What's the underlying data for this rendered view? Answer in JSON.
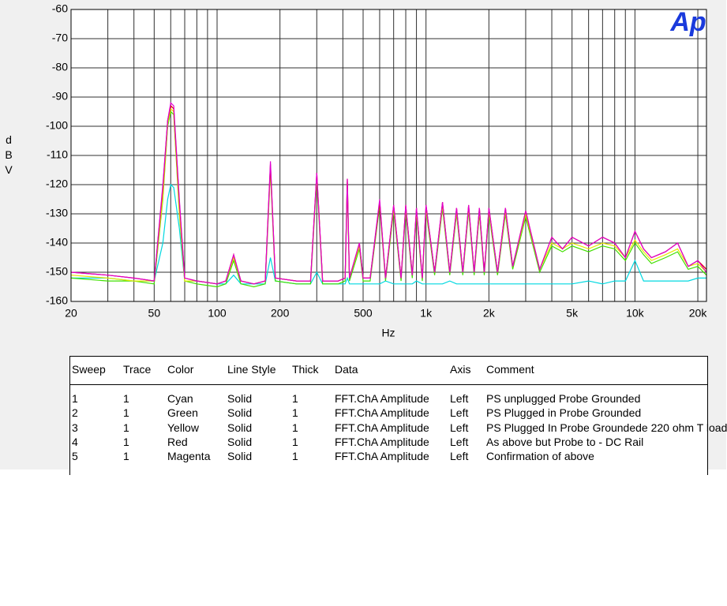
{
  "chart_data": {
    "type": "line",
    "logo": "Ap",
    "ylabel": "dBV",
    "xlabel": "Hz",
    "xlog": true,
    "grid": true,
    "xlim": [
      20,
      22000
    ],
    "ylim": [
      -160,
      -60
    ],
    "xticks": [
      20,
      50,
      100,
      200,
      500,
      {
        "value": 1000,
        "label": "1k"
      },
      {
        "value": 2000,
        "label": "2k"
      },
      {
        "value": 5000,
        "label": "5k"
      },
      {
        "value": 10000,
        "label": "10k"
      },
      {
        "value": 20000,
        "label": "20k"
      }
    ],
    "xminorticks": [
      30,
      40,
      60,
      70,
      80,
      90,
      300,
      400,
      600,
      700,
      800,
      900,
      3000,
      4000,
      6000,
      7000,
      8000,
      9000
    ],
    "yticks": [
      -60,
      -70,
      -80,
      -90,
      -100,
      -110,
      -120,
      -130,
      -140,
      -150,
      -160
    ],
    "x": [
      20,
      30,
      40,
      50,
      55,
      58,
      60,
      62,
      66,
      70,
      80,
      100,
      110,
      120,
      130,
      150,
      170,
      180,
      190,
      240,
      280,
      300,
      320,
      380,
      410,
      420,
      430,
      480,
      500,
      540,
      600,
      640,
      700,
      760,
      800,
      860,
      900,
      960,
      1000,
      1100,
      1200,
      1300,
      1400,
      1500,
      1600,
      1700,
      1800,
      1900,
      2000,
      2200,
      2400,
      2600,
      3000,
      3500,
      4000,
      4500,
      5000,
      6000,
      7000,
      8000,
      9000,
      10000,
      11000,
      12000,
      14000,
      16000,
      18000,
      20000,
      22000
    ],
    "series": [
      {
        "name": "Cyan",
        "color": "#00d8e0",
        "values": [
          -152,
          -152,
          -153,
          -153,
          -140,
          -125,
          -120,
          -121,
          -135,
          -153,
          -153,
          -154,
          -154,
          -151,
          -154,
          -154,
          -154,
          -145,
          -153,
          -154,
          -154,
          -150,
          -154,
          -154,
          -154,
          -152,
          -154,
          -154,
          -154,
          -154,
          -154,
          -153,
          -154,
          -154,
          -154,
          -154,
          -153,
          -154,
          -154,
          -154,
          -154,
          -153,
          -154,
          -154,
          -154,
          -154,
          -154,
          -154,
          -154,
          -154,
          -154,
          -154,
          -154,
          -154,
          -154,
          -154,
          -154,
          -153,
          -154,
          -153,
          -153,
          -146,
          -153,
          -153,
          -153,
          -153,
          -153,
          -152,
          -152
        ]
      },
      {
        "name": "Green",
        "color": "#40e000",
        "values": [
          -152,
          -153,
          -153,
          -154,
          -125,
          -100,
          -95,
          -96,
          -130,
          -153,
          -154,
          -155,
          -154,
          -146,
          -154,
          -155,
          -154,
          -115,
          -153,
          -154,
          -154,
          -118,
          -154,
          -154,
          -153,
          -120,
          -153,
          -142,
          -153,
          -153,
          -127,
          -153,
          -129,
          -153,
          -129,
          -152,
          -130,
          -153,
          -129,
          -151,
          -128,
          -151,
          -130,
          -151,
          -129,
          -151,
          -130,
          -151,
          -130,
          -151,
          -130,
          -149,
          -131,
          -150,
          -141,
          -143,
          -141,
          -143,
          -141,
          -142,
          -146,
          -140,
          -144,
          -147,
          -145,
          -143,
          -149,
          -148,
          -151
        ]
      },
      {
        "name": "Yellow",
        "color": "#e8e800",
        "values": [
          -151,
          -152,
          -153,
          -153,
          -124,
          -99,
          -94,
          -95,
          -129,
          -153,
          -153,
          -154,
          -153,
          -145,
          -153,
          -154,
          -153,
          -114,
          -152,
          -153,
          -153,
          -117,
          -153,
          -153,
          -152,
          -119,
          -152,
          -141,
          -152,
          -152,
          -126,
          -152,
          -128,
          -152,
          -128,
          -151,
          -129,
          -152,
          -128,
          -150,
          -127,
          -150,
          -129,
          -150,
          -128,
          -150,
          -129,
          -150,
          -129,
          -150,
          -129,
          -148,
          -130,
          -149,
          -140,
          -142,
          -140,
          -142,
          -140,
          -141,
          -145,
          -139,
          -143,
          -146,
          -144,
          -142,
          -148,
          -147,
          -150
        ]
      },
      {
        "name": "Red",
        "color": "#e00000",
        "values": [
          -150,
          -151,
          -152,
          -153,
          -121,
          -98,
          -93,
          -94,
          -126,
          -152,
          -153,
          -154,
          -153,
          -144,
          -153,
          -154,
          -153,
          -113,
          -152,
          -153,
          -153,
          -116,
          -153,
          -153,
          -152,
          -118,
          -152,
          -140,
          -152,
          -152,
          -126,
          -152,
          -127,
          -152,
          -127,
          -151,
          -128,
          -152,
          -127,
          -150,
          -126,
          -150,
          -128,
          -150,
          -127,
          -150,
          -128,
          -150,
          -128,
          -150,
          -128,
          -148,
          -129,
          -149,
          -138,
          -142,
          -138,
          -141,
          -138,
          -140,
          -145,
          -136,
          -142,
          -145,
          -143,
          -140,
          -148,
          -146,
          -149
        ]
      },
      {
        "name": "Magenta",
        "color": "#e000d0",
        "values": [
          -150,
          -151,
          -152,
          -153,
          -120,
          -98,
          -92,
          -93,
          -125,
          -152,
          -153,
          -154,
          -153,
          -144,
          -153,
          -154,
          -153,
          -112,
          -152,
          -153,
          -153,
          -116,
          -153,
          -153,
          -152,
          -118,
          -152,
          -140,
          -152,
          -152,
          -125,
          -152,
          -127,
          -152,
          -127,
          -151,
          -128,
          -152,
          -127,
          -150,
          -126,
          -150,
          -128,
          -150,
          -127,
          -150,
          -128,
          -150,
          -128,
          -150,
          -128,
          -148,
          -129,
          -149,
          -138,
          -142,
          -138,
          -141,
          -138,
          -140,
          -145,
          -136,
          -142,
          -145,
          -143,
          -140,
          -148,
          -146,
          -150
        ]
      }
    ]
  },
  "table": {
    "columns": [
      "Sweep",
      "Trace",
      "Color",
      "Line Style",
      "Thick",
      "Data",
      "Axis",
      "Comment"
    ],
    "rows": [
      [
        "1",
        "1",
        "Cyan",
        "Solid",
        "1",
        "FFT.ChA Amplitude",
        "Left",
        "PS unplugged Probe Grounded"
      ],
      [
        "2",
        "1",
        "Green",
        "Solid",
        "1",
        "FFT.ChA Amplitude",
        "Left",
        "PS Plugged in Probe Grounded"
      ],
      [
        "3",
        "1",
        "Yellow",
        "Solid",
        "1",
        "FFT.ChA Amplitude",
        "Left",
        "PS Plugged In Probe Groundede 220 ohm T load"
      ],
      [
        "4",
        "1",
        "Red",
        "Solid",
        "1",
        "FFT.ChA Amplitude",
        "Left",
        "As above but Probe to - DC Rail"
      ],
      [
        "5",
        "1",
        "Magenta",
        "Solid",
        "1",
        "FFT.ChA Amplitude",
        "Left",
        "Confirmation of above"
      ]
    ]
  }
}
